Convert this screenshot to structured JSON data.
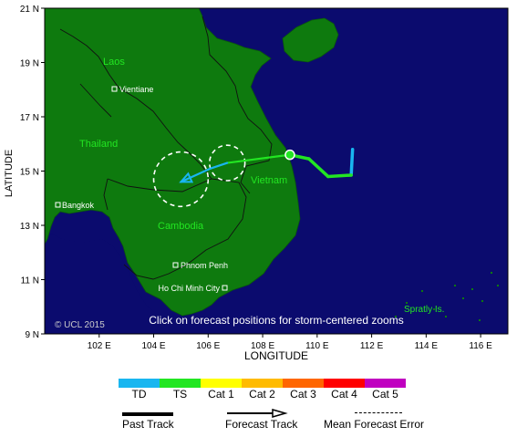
{
  "map": {
    "x_title": "LONGITUDE",
    "y_title": "LATITUDE",
    "lat_ticks": [
      {
        "value": 21,
        "label": "21 N"
      },
      {
        "value": 19,
        "label": "19 N"
      },
      {
        "value": 17,
        "label": "17 N"
      },
      {
        "value": 15,
        "label": "15 N"
      },
      {
        "value": 13,
        "label": "13 N"
      },
      {
        "value": 11,
        "label": "11 N"
      },
      {
        "value": 9,
        "label": "9 N"
      }
    ],
    "lon_ticks": [
      {
        "value": 102,
        "label": "102 E"
      },
      {
        "value": 104,
        "label": "104 E"
      },
      {
        "value": 106,
        "label": "106 E"
      },
      {
        "value": 108,
        "label": "108 E"
      },
      {
        "value": 110,
        "label": "110 E"
      },
      {
        "value": 112,
        "label": "112 E"
      },
      {
        "value": 114,
        "label": "114 E"
      },
      {
        "value": 116,
        "label": "116 E"
      }
    ],
    "lon_range": [
      100,
      117
    ],
    "lat_range": [
      9,
      21
    ],
    "ocean_color": "#0b0b6e",
    "land_color": "#0e7a0e",
    "border_color": "#111111",
    "country_labels": [
      "Laos",
      "Thailand",
      "Cambodia",
      "Vietnam"
    ],
    "city_labels": [
      "Vientiane",
      "Bangkok",
      "Phnom Penh",
      "Ho Chi Minh City"
    ],
    "region_label": "Spratly Is.",
    "copyright": "© UCL 2015",
    "click_hint": "Click on forecast positions for storm-centered zooms"
  },
  "storm": {
    "current_position": {
      "lon": 109.0,
      "lat": 15.6
    },
    "track_colors": {
      "td": "#19b6f0",
      "ts": "#22e622"
    },
    "past_track": [
      {
        "lon": 111.3,
        "lat": 15.8,
        "category": "TD"
      },
      {
        "lon": 111.25,
        "lat": 14.85,
        "category": "TD"
      },
      {
        "lon": 110.4,
        "lat": 14.8,
        "category": "TS"
      },
      {
        "lon": 109.7,
        "lat": 15.45,
        "category": "TS"
      },
      {
        "lon": 109.0,
        "lat": 15.6,
        "category": "TS"
      }
    ],
    "forecast_track": [
      {
        "lon": 109.0,
        "lat": 15.6,
        "category": "TS"
      },
      {
        "lon": 106.7,
        "lat": 15.3,
        "category": "TS"
      },
      {
        "lon": 106.1,
        "lat": 15.1,
        "category": "TD"
      },
      {
        "lon": 105.0,
        "lat": 14.6,
        "category": "TD"
      }
    ],
    "error_circles": [
      {
        "lon": 106.7,
        "lat": 15.3,
        "radius_deg": 0.65
      },
      {
        "lon": 105.0,
        "lat": 14.7,
        "radius_deg": 1.0
      }
    ]
  },
  "legend": {
    "categories": [
      {
        "label": "TD",
        "color": "#19b6f0"
      },
      {
        "label": "TS",
        "color": "#22e622"
      },
      {
        "label": "Cat 1",
        "color": "#ffff00"
      },
      {
        "label": "Cat 2",
        "color": "#ffbb00"
      },
      {
        "label": "Cat 3",
        "color": "#ff6600"
      },
      {
        "label": "Cat 4",
        "color": "#ff0000"
      },
      {
        "label": "Cat 5",
        "color": "#c000c0"
      }
    ],
    "past_track_label": "Past Track",
    "forecast_track_label": "Forecast Track",
    "mean_error_label": "Mean Forecast Error"
  }
}
